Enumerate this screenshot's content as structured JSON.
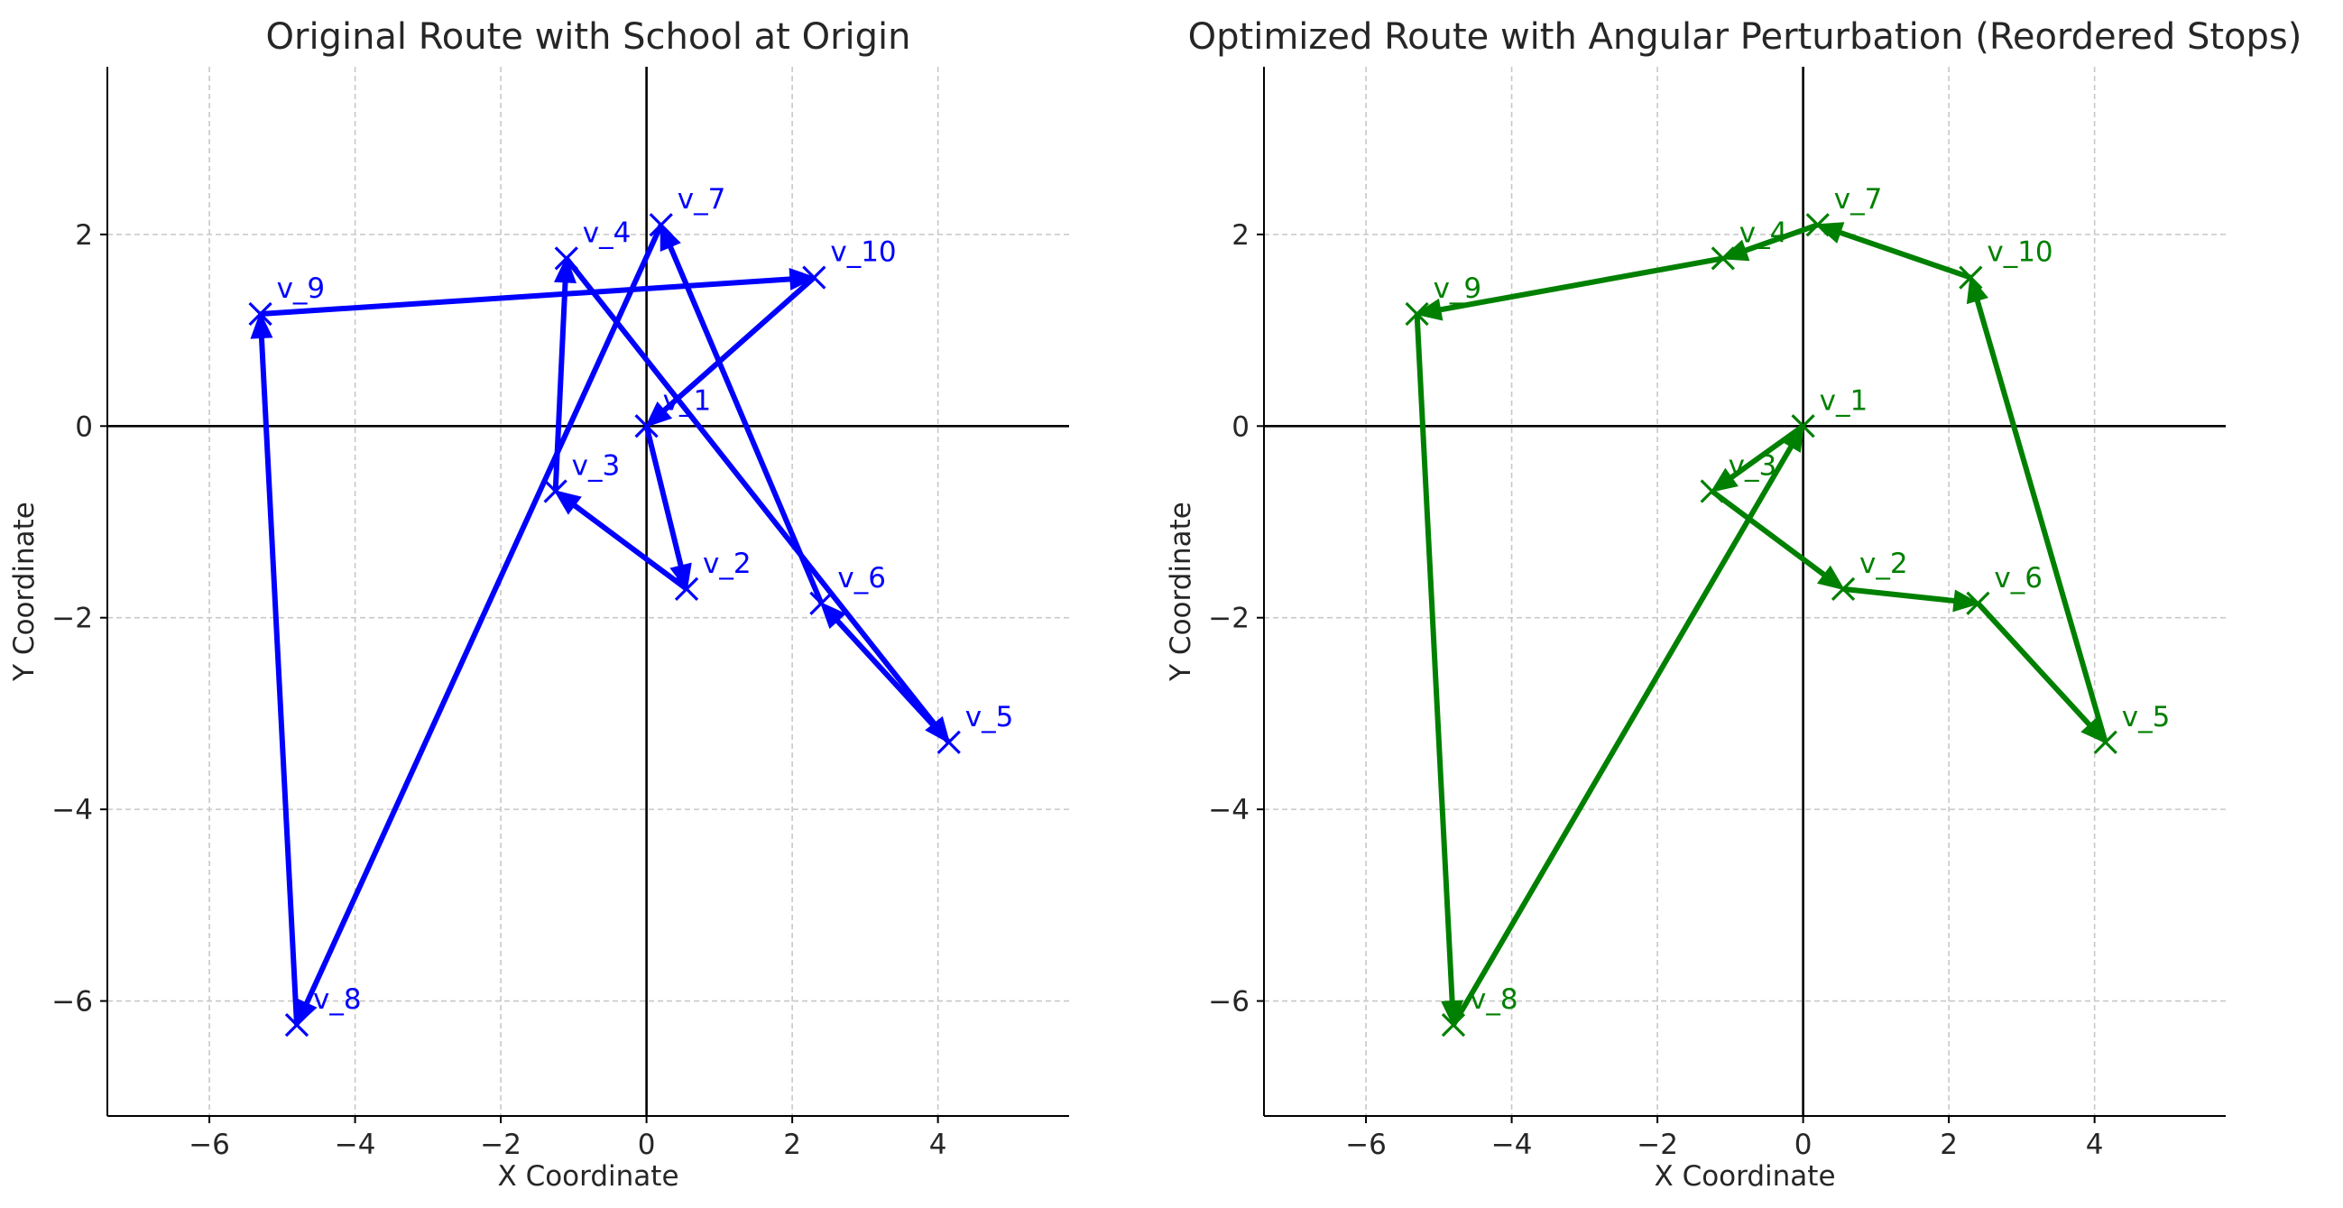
{
  "chart_data": [
    {
      "type": "line",
      "title": "Original Route with School at Origin",
      "xlabel": "X Coordinate",
      "ylabel": "Y Coordinate",
      "xlim": [
        -7.4,
        5.8
      ],
      "ylim": [
        -7.2,
        3.75
      ],
      "xticks": [
        -6,
        -4,
        -2,
        0,
        2,
        4
      ],
      "yticks": [
        -6,
        -4,
        -2,
        0,
        2
      ],
      "tick_labels_x": [
        "−6",
        "−4",
        "−2",
        "0",
        "2",
        "4"
      ],
      "tick_labels_y": [
        "−6",
        "−4",
        "−2",
        "0",
        "2"
      ],
      "grid": true,
      "color": "#0000ff",
      "points": [
        {
          "label": "v_1",
          "x": 0.0,
          "y": 0.0
        },
        {
          "label": "v_2",
          "x": 0.55,
          "y": -1.7
        },
        {
          "label": "v_3",
          "x": -1.25,
          "y": -0.68
        },
        {
          "label": "v_4",
          "x": -1.1,
          "y": 1.75
        },
        {
          "label": "v_5",
          "x": 4.15,
          "y": -3.3
        },
        {
          "label": "v_6",
          "x": 2.4,
          "y": -1.85
        },
        {
          "label": "v_7",
          "x": 0.2,
          "y": 2.1
        },
        {
          "label": "v_8",
          "x": -4.8,
          "y": -6.25
        },
        {
          "label": "v_9",
          "x": -5.3,
          "y": 1.17
        },
        {
          "label": "v_10",
          "x": 2.3,
          "y": 1.55
        }
      ],
      "route": [
        "v_1",
        "v_2",
        "v_3",
        "v_4",
        "v_5",
        "v_6",
        "v_7",
        "v_8",
        "v_9",
        "v_10",
        "v_1"
      ]
    },
    {
      "type": "line",
      "title": "Optimized Route with Angular Perturbation (Reordered Stops)",
      "xlabel": "X Coordinate",
      "ylabel": "Y Coordinate",
      "xlim": [
        -7.4,
        5.8
      ],
      "ylim": [
        -7.2,
        3.75
      ],
      "xticks": [
        -6,
        -4,
        -2,
        0,
        2,
        4
      ],
      "yticks": [
        -6,
        -4,
        -2,
        0,
        2
      ],
      "tick_labels_x": [
        "−6",
        "−4",
        "−2",
        "0",
        "2",
        "4"
      ],
      "tick_labels_y": [
        "−6",
        "−4",
        "−2",
        "0",
        "2"
      ],
      "grid": true,
      "color": "#008000",
      "points": [
        {
          "label": "v_1",
          "x": 0.0,
          "y": 0.0
        },
        {
          "label": "v_2",
          "x": 0.55,
          "y": -1.7
        },
        {
          "label": "v_3",
          "x": -1.25,
          "y": -0.68
        },
        {
          "label": "v_4",
          "x": -1.1,
          "y": 1.75
        },
        {
          "label": "v_5",
          "x": 4.15,
          "y": -3.3
        },
        {
          "label": "v_6",
          "x": 2.4,
          "y": -1.85
        },
        {
          "label": "v_7",
          "x": 0.2,
          "y": 2.1
        },
        {
          "label": "v_8",
          "x": -4.8,
          "y": -6.25
        },
        {
          "label": "v_9",
          "x": -5.3,
          "y": 1.17
        },
        {
          "label": "v_10",
          "x": 2.3,
          "y": 1.55
        }
      ],
      "route": [
        "v_1",
        "v_3",
        "v_2",
        "v_6",
        "v_5",
        "v_10",
        "v_7",
        "v_4",
        "v_9",
        "v_8",
        "v_1"
      ]
    }
  ]
}
